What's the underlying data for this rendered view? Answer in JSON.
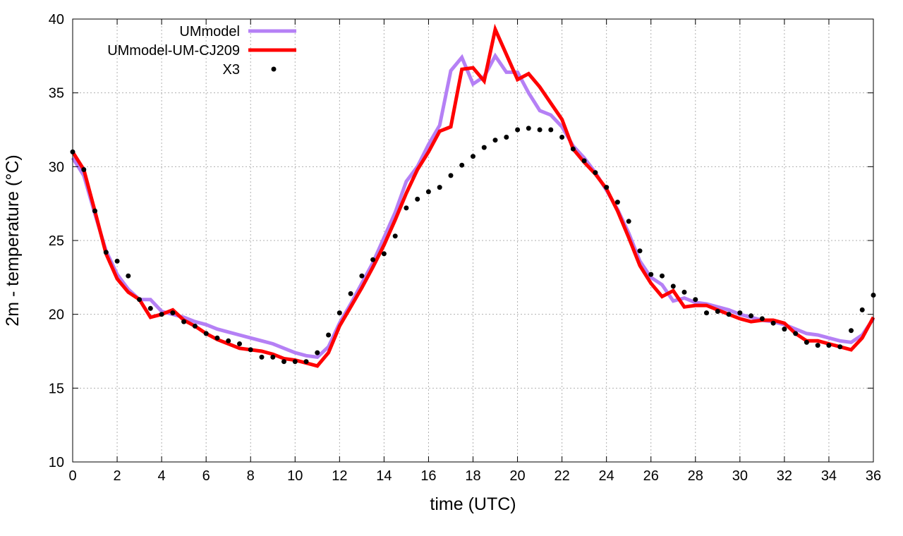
{
  "chart_data": {
    "type": "line",
    "xlabel": "time (UTC)",
    "ylabel": "2m - temperature (°C)",
    "xlim": [
      0,
      36
    ],
    "ylim": [
      10,
      40
    ],
    "xticks": [
      0,
      2,
      4,
      6,
      8,
      10,
      12,
      14,
      16,
      18,
      20,
      22,
      24,
      26,
      28,
      30,
      32,
      34,
      36
    ],
    "yticks": [
      10,
      15,
      20,
      25,
      30,
      35,
      40
    ],
    "grid": true,
    "legend_position": "top-left",
    "series": [
      {
        "name": "UMmodel",
        "style": "line",
        "color": "#b580f5",
        "x": [
          0,
          0.5,
          1,
          1.5,
          2,
          2.5,
          3,
          3.5,
          4,
          4.5,
          5,
          5.5,
          6,
          6.5,
          7,
          7.5,
          8,
          8.5,
          9,
          9.5,
          10,
          10.5,
          11,
          11.5,
          12,
          12.5,
          13,
          13.5,
          14,
          14.5,
          15,
          15.5,
          16,
          16.5,
          17,
          17.5,
          18,
          18.5,
          19,
          19.5,
          20,
          20.5,
          21,
          21.5,
          22,
          22.5,
          23,
          23.5,
          24,
          24.5,
          25,
          25.5,
          26,
          26.5,
          27,
          27.5,
          28,
          28.5,
          29,
          29.5,
          30,
          30.5,
          31,
          31.5,
          32,
          32.5,
          33,
          33.5,
          34,
          34.5,
          35,
          35.5,
          36
        ],
        "y": [
          30.6,
          29.4,
          26.8,
          24.3,
          22.7,
          21.7,
          21.0,
          21.0,
          20.2,
          20.0,
          19.8,
          19.5,
          19.3,
          19.0,
          18.8,
          18.6,
          18.4,
          18.2,
          18.0,
          17.7,
          17.4,
          17.2,
          17.1,
          17.8,
          19.4,
          20.7,
          22.1,
          23.5,
          25.2,
          26.9,
          29.0,
          30.0,
          31.5,
          32.8,
          36.5,
          37.4,
          35.6,
          36.1,
          37.5,
          36.4,
          36.4,
          35.0,
          33.8,
          33.5,
          32.7,
          31.4,
          30.6,
          29.6,
          28.4,
          27.1,
          25.5,
          23.6,
          22.5,
          22.0,
          20.9,
          21.1,
          20.8,
          20.7,
          20.5,
          20.3,
          20.0,
          19.8,
          19.6,
          19.5,
          19.3,
          19.0,
          18.7,
          18.6,
          18.4,
          18.2,
          18.1,
          18.6,
          19.7
        ]
      },
      {
        "name": "UMmodel-UM-CJ209",
        "style": "line",
        "color": "#ff0000",
        "x": [
          0,
          0.5,
          1,
          1.5,
          2,
          2.5,
          3,
          3.5,
          4,
          4.5,
          5,
          5.5,
          6,
          6.5,
          7,
          7.5,
          8,
          8.5,
          9,
          9.5,
          10,
          10.5,
          11,
          11.5,
          12,
          12.5,
          13,
          13.5,
          14,
          14.5,
          15,
          15.5,
          16,
          16.5,
          17,
          17.5,
          18,
          18.5,
          19,
          19.5,
          20,
          20.5,
          21,
          21.5,
          22,
          22.5,
          23,
          23.5,
          24,
          24.5,
          25,
          25.5,
          26,
          26.5,
          27,
          27.5,
          28,
          28.5,
          29,
          29.5,
          30,
          30.5,
          31,
          31.5,
          32,
          32.5,
          33,
          33.5,
          34,
          34.5,
          35,
          35.5,
          36
        ],
        "y": [
          31.0,
          29.8,
          27.0,
          24.1,
          22.4,
          21.5,
          21.0,
          19.8,
          20.0,
          20.3,
          19.6,
          19.2,
          18.7,
          18.3,
          18.0,
          17.7,
          17.6,
          17.5,
          17.3,
          17.0,
          16.9,
          16.7,
          16.5,
          17.4,
          19.2,
          20.5,
          21.8,
          23.2,
          24.7,
          26.4,
          28.2,
          29.8,
          31.0,
          32.4,
          32.7,
          36.6,
          36.7,
          35.8,
          39.3,
          37.6,
          35.9,
          36.3,
          35.4,
          34.3,
          33.2,
          31.2,
          30.3,
          29.5,
          28.5,
          27.0,
          25.2,
          23.3,
          22.1,
          21.2,
          21.6,
          20.5,
          20.6,
          20.6,
          20.3,
          20.0,
          19.7,
          19.5,
          19.6,
          19.6,
          19.4,
          18.7,
          18.2,
          18.2,
          18.0,
          17.8,
          17.6,
          18.4,
          19.8
        ]
      },
      {
        "name": "X3",
        "style": "points",
        "color": "#000000",
        "x": [
          0,
          0.5,
          1,
          1.5,
          2,
          2.5,
          3,
          3.5,
          4,
          4.5,
          5,
          5.5,
          6,
          6.5,
          7,
          7.5,
          8,
          8.5,
          9,
          9.5,
          10,
          10.5,
          11,
          11.5,
          12,
          12.5,
          13,
          13.5,
          14,
          14.5,
          15,
          15.5,
          16,
          16.5,
          17,
          17.5,
          18,
          18.5,
          19,
          19.5,
          20,
          20.5,
          21,
          21.5,
          22,
          22.5,
          23,
          23.5,
          24,
          24.5,
          25,
          25.5,
          26,
          26.5,
          27,
          27.5,
          28,
          28.5,
          29,
          29.5,
          30,
          30.5,
          31,
          31.5,
          32,
          32.5,
          33,
          33.5,
          34,
          34.5,
          35,
          35.5,
          36
        ],
        "y": [
          31.0,
          29.8,
          27.0,
          24.2,
          23.6,
          22.6,
          21.0,
          20.4,
          20.0,
          20.1,
          19.5,
          19.2,
          18.7,
          18.4,
          18.2,
          18.0,
          17.6,
          17.1,
          17.1,
          16.8,
          16.8,
          16.8,
          17.4,
          18.6,
          20.1,
          21.4,
          22.6,
          23.7,
          24.1,
          25.3,
          27.2,
          27.8,
          28.3,
          28.6,
          29.4,
          30.1,
          30.7,
          31.3,
          31.8,
          32.0,
          32.5,
          32.6,
          32.5,
          32.5,
          32.0,
          31.2,
          30.4,
          29.6,
          28.6,
          27.6,
          26.3,
          24.3,
          22.7,
          22.6,
          21.9,
          21.5,
          21.0,
          20.1,
          20.2,
          20.0,
          20.1,
          19.9,
          19.7,
          19.4,
          19.0,
          18.7,
          18.1,
          17.9,
          17.9,
          17.8,
          18.9,
          20.3,
          21.3
        ]
      }
    ]
  }
}
